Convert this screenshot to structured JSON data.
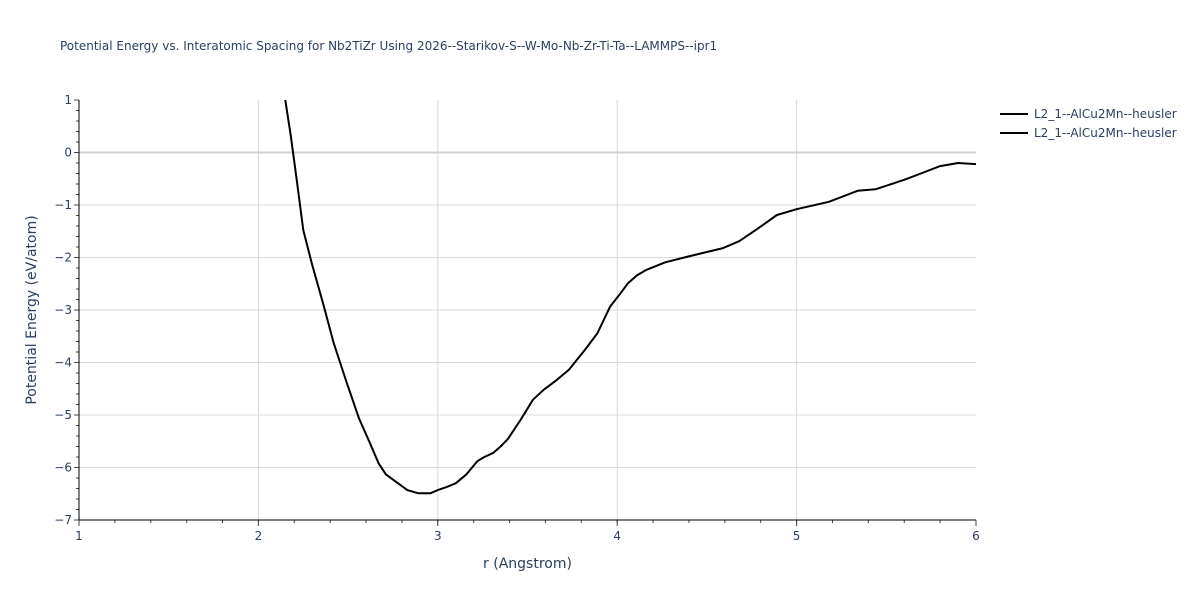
{
  "chart_data": {
    "type": "line",
    "title": "Potential Energy vs. Interatomic Spacing for Nb2TiZr Using 2026--Starikov-S--W-Mo-Nb-Zr-Ti-Ta--LAMMPS--ipr1",
    "xlabel": "r (Angstrom)",
    "ylabel": "Potential Energy (eV/atom)",
    "xlim": [
      1,
      6
    ],
    "ylim": [
      -7,
      1
    ],
    "x_ticks": [
      "1",
      "2",
      "3",
      "4",
      "5",
      "6"
    ],
    "y_ticks": [
      "1",
      "0",
      "−1",
      "−2",
      "−3",
      "−4",
      "−5",
      "−6",
      "−7"
    ],
    "grid": true,
    "legend_position": "top-right-outside",
    "legend": [
      "L2_1--AlCu2Mn--heusler",
      "L2_1--AlCu2Mn--heusler"
    ],
    "series": [
      {
        "name": "L2_1--AlCu2Mn--heusler",
        "color": "#000000",
        "x": [
          2.15,
          2.18,
          2.21,
          2.25,
          2.3,
          2.36,
          2.42,
          2.49,
          2.56,
          2.62,
          2.67,
          2.71,
          2.77,
          2.83,
          2.89,
          2.96,
          3.0,
          3.05,
          3.1,
          3.16,
          3.22,
          3.26,
          3.31,
          3.35,
          3.39,
          3.46,
          3.53,
          3.59,
          3.66,
          3.73,
          3.82,
          3.89,
          3.96,
          4.01,
          4.06,
          4.11,
          4.16,
          4.27,
          4.41,
          4.59,
          4.68,
          4.78,
          4.89,
          5.0,
          5.18,
          5.34,
          5.44,
          5.6,
          5.7,
          5.8,
          5.9,
          6.0
        ],
        "y": [
          1.0,
          0.33,
          -0.43,
          -1.48,
          -2.14,
          -2.87,
          -3.63,
          -4.36,
          -5.06,
          -5.52,
          -5.92,
          -6.13,
          -6.28,
          -6.43,
          -6.49,
          -6.49,
          -6.43,
          -6.37,
          -6.3,
          -6.13,
          -5.88,
          -5.8,
          -5.72,
          -5.6,
          -5.46,
          -5.1,
          -4.71,
          -4.52,
          -4.34,
          -4.14,
          -3.76,
          -3.44,
          -2.94,
          -2.72,
          -2.49,
          -2.34,
          -2.24,
          -2.09,
          -1.97,
          -1.82,
          -1.69,
          -1.46,
          -1.19,
          -1.08,
          -0.94,
          -0.73,
          -0.7,
          -0.52,
          -0.39,
          -0.26,
          -0.2,
          -0.22
        ]
      }
    ]
  }
}
